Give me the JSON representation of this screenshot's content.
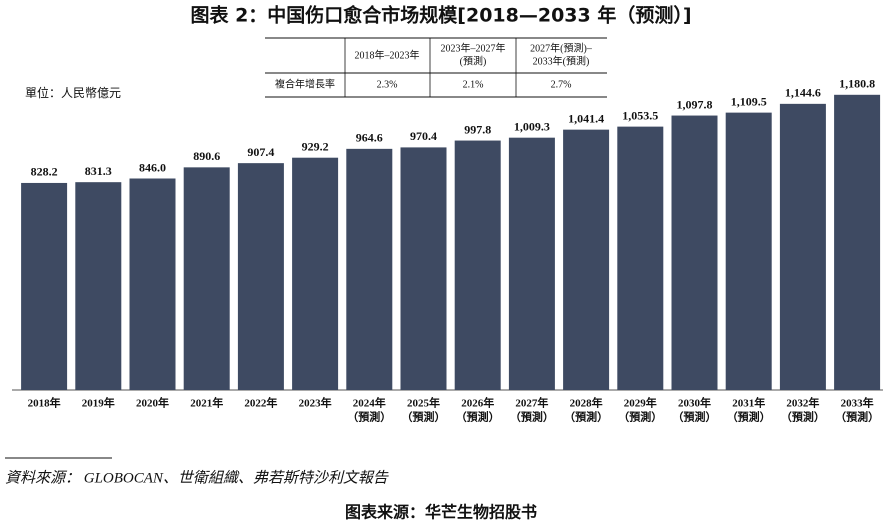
{
  "chart_data": {
    "type": "bar",
    "title": "图表 2：中国伤口愈合市场规模[2018—2033 年（预测）]",
    "unit_label": "單位：人民幣億元",
    "categories": [
      [
        "2018年"
      ],
      [
        "2019年"
      ],
      [
        "2020年"
      ],
      [
        "2021年"
      ],
      [
        "2022年"
      ],
      [
        "2023年"
      ],
      [
        "2024年",
        "（預測）"
      ],
      [
        "2025年",
        "（預測）"
      ],
      [
        "2026年",
        "（預測）"
      ],
      [
        "2027年",
        "（預測）"
      ],
      [
        "2028年",
        "（預測）"
      ],
      [
        "2029年",
        "（預測）"
      ],
      [
        "2030年",
        "（預測）"
      ],
      [
        "2031年",
        "（預測）"
      ],
      [
        "2032年",
        "（預測）"
      ],
      [
        "2033年",
        "（預測）"
      ]
    ],
    "values": [
      828.2,
      831.3,
      846.0,
      890.6,
      907.4,
      929.2,
      964.6,
      970.4,
      997.8,
      1009.3,
      1041.4,
      1053.5,
      1097.8,
      1109.5,
      1144.6,
      1180.8
    ],
    "value_labels": [
      "828.2",
      "831.3",
      "846.0",
      "890.6",
      "907.4",
      "929.2",
      "964.6",
      "970.4",
      "997.8",
      "1,009.3",
      "1,041.4",
      "1,053.5",
      "1,097.8",
      "1,109.5",
      "1,144.6",
      "1,180.8"
    ],
    "color": "#3e4a62",
    "ylim": [
      0,
      1300
    ]
  },
  "cagr_table": {
    "columns": [
      [
        "2018年–2023年"
      ],
      [
        "2023年–2027年",
        "(預測)"
      ],
      [
        "2027年(預測)–",
        "2033年(預測)"
      ]
    ],
    "row_label": "複合年增長率",
    "values": [
      "2.3%",
      "2.1%",
      "2.7%"
    ]
  },
  "source": "資料來源： GLOBOCAN、世衛組織、弗若斯特沙利文報告",
  "footer": "图表来源：华芒生物招股书"
}
